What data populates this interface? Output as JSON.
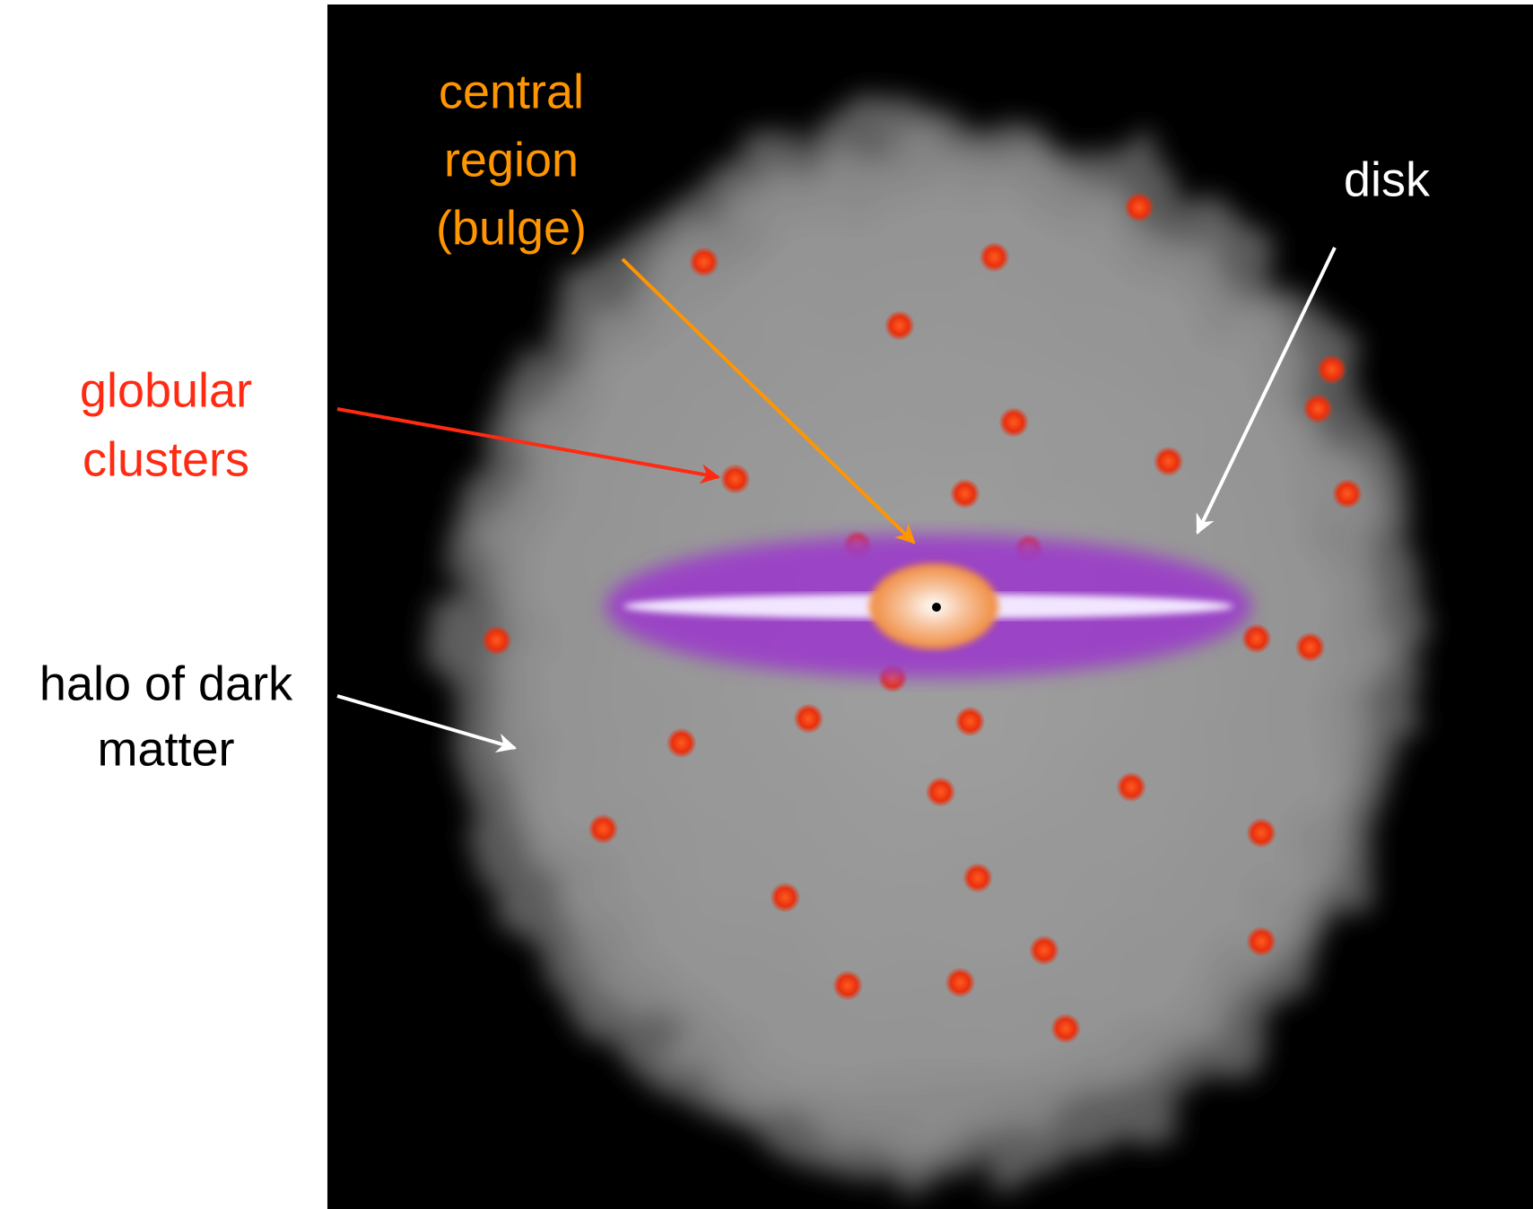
{
  "labels": {
    "bulge": [
      "central",
      "region",
      "(bulge)"
    ],
    "disk": "disk",
    "globular_clusters": [
      "globular",
      "clusters"
    ],
    "halo": [
      "halo of dark",
      "matter"
    ]
  }
}
